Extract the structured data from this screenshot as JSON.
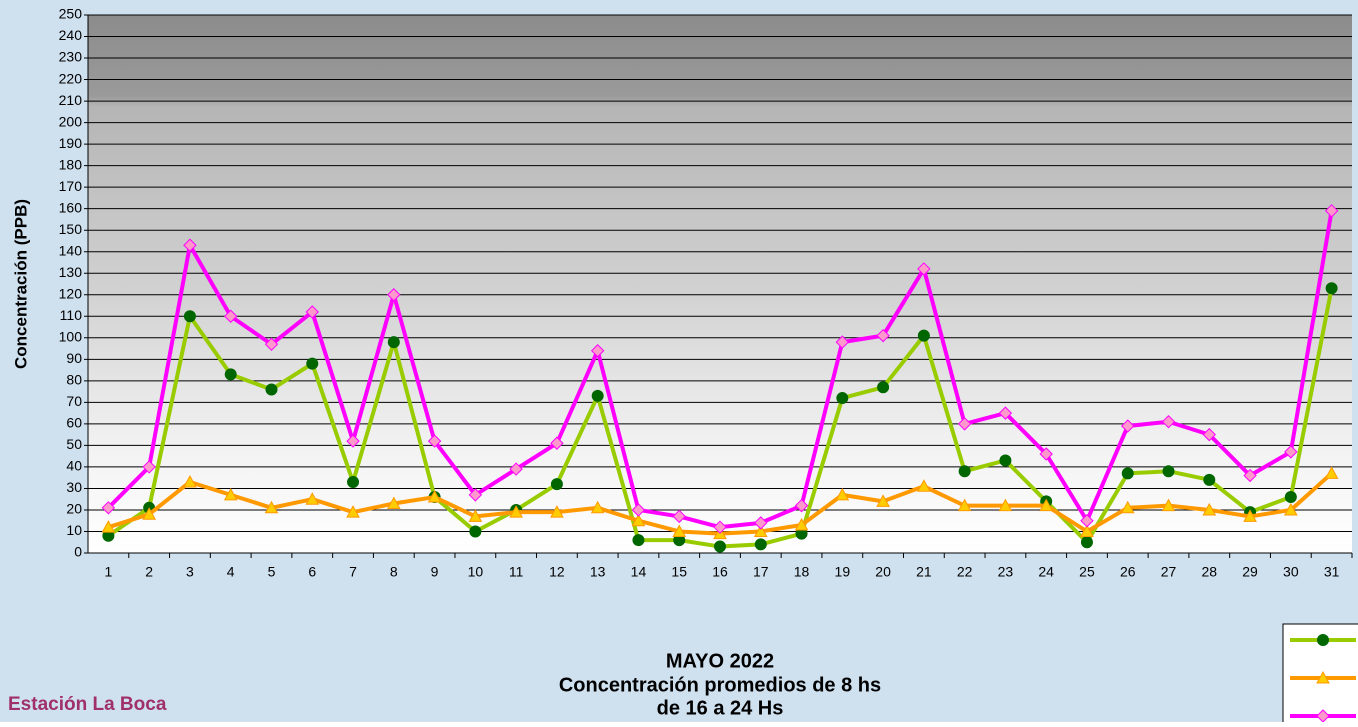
{
  "chart_data": {
    "type": "line",
    "title": "MAYO 2022",
    "subtitle": [
      "Concentración promedios de 8 hs",
      "de 16 a 24 Hs"
    ],
    "annotations": [
      "Estación La Boca"
    ],
    "y_label": "Concentración   (PPB)",
    "categories": [
      "1",
      "2",
      "3",
      "4",
      "5",
      "6",
      "7",
      "8",
      "9",
      "10",
      "11",
      "12",
      "13",
      "14",
      "15",
      "16",
      "17",
      "18",
      "19",
      "20",
      "21",
      "22",
      "23",
      "24",
      "25",
      "26",
      "27",
      "28",
      "29",
      "30",
      "31"
    ],
    "series": [
      {
        "color": "#99cc00",
        "marker": "circle",
        "marker_color": "#006600",
        "values": [
          8,
          21,
          110,
          83,
          76,
          88,
          33,
          98,
          26,
          10,
          20,
          32,
          73,
          6,
          6,
          3,
          4,
          9,
          72,
          77,
          101,
          38,
          43,
          24,
          5,
          37,
          38,
          34,
          19,
          26,
          123
        ]
      },
      {
        "color": "#ff9900",
        "marker": "triangle",
        "marker_color": "#ffcc00",
        "values": [
          12,
          18,
          33,
          27,
          21,
          25,
          19,
          23,
          26,
          17,
          19,
          19,
          21,
          15,
          10,
          9,
          10,
          13,
          27,
          24,
          31,
          22,
          22,
          22,
          10,
          21,
          22,
          20,
          17,
          20,
          37
        ]
      },
      {
        "color": "#ff00ff",
        "marker": "diamond",
        "marker_color": "#ff99cc",
        "values": [
          21,
          40,
          143,
          110,
          97,
          112,
          52,
          120,
          52,
          27,
          39,
          51,
          94,
          20,
          17,
          12,
          14,
          22,
          98,
          101,
          132,
          60,
          65,
          46,
          15,
          59,
          61,
          55,
          36,
          47,
          159
        ]
      }
    ],
    "ylim": [
      0,
      250
    ],
    "yticks": [
      0,
      10,
      20,
      30,
      40,
      50,
      60,
      70,
      80,
      90,
      100,
      110,
      120,
      130,
      140,
      150,
      160,
      170,
      180,
      190,
      200,
      210,
      220,
      230,
      240,
      250
    ],
    "grid": true
  }
}
